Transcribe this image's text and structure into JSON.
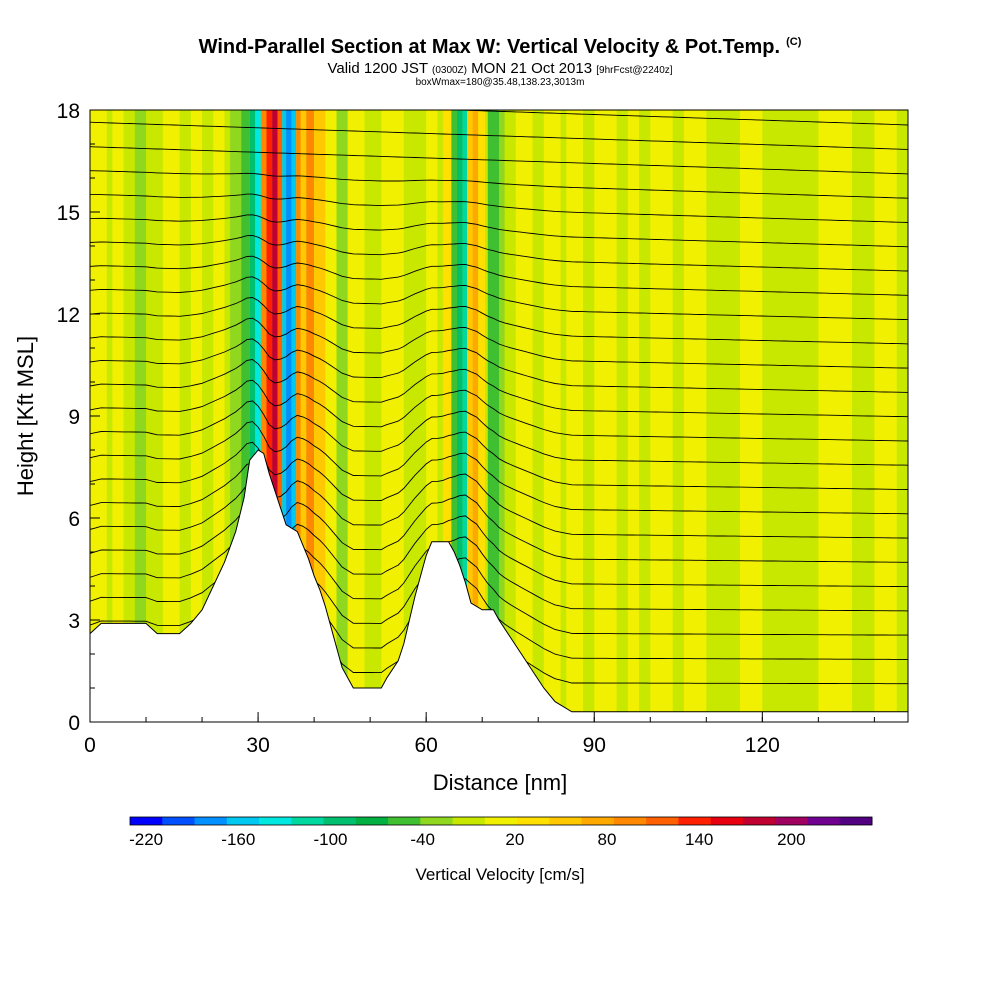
{
  "header": {
    "title": "Wind-Parallel Section at Max W: Vertical Velocity & Pot.Temp.",
    "title_tag": "(C)",
    "subtitle_main": "Valid 1200 JST",
    "subtitle_utc": "(0300Z)",
    "subtitle_date": "MON 21 Oct 2013",
    "subtitle_fcst": "[9hrFcst@2240z]",
    "subtitle_box": "boxWmax=180@35.48,138.23,3013m"
  },
  "chart_data": {
    "type": "heatmap",
    "title": "Wind-Parallel Section at Max W: Vertical Velocity & Pot.Temp.",
    "xlabel": "Distance [nm]",
    "ylabel": "Height [Kft MSL]",
    "xlim": [
      0,
      146
    ],
    "ylim": [
      0,
      18
    ],
    "x_ticks": [
      0,
      30,
      60,
      90,
      120
    ],
    "y_ticks": [
      0,
      3,
      6,
      9,
      12,
      15,
      18
    ],
    "colorbar": {
      "label": "Vertical Velocity [cm/s]",
      "tick_values": [
        -220,
        -160,
        -100,
        -40,
        20,
        80,
        140,
        200
      ],
      "colors": [
        "#0000ff",
        "#0050ff",
        "#0090ff",
        "#00c8f0",
        "#00e8e0",
        "#00d8a0",
        "#00c070",
        "#00b040",
        "#40c030",
        "#90d820",
        "#c8e800",
        "#f0f000",
        "#ffe000",
        "#ffc800",
        "#ffa800",
        "#ff8800",
        "#ff6000",
        "#ff2000",
        "#e80010",
        "#c00030",
        "#a00060",
        "#700090",
        "#500080"
      ]
    },
    "terrain_kft": [
      [
        0,
        2.6
      ],
      [
        2,
        2.9
      ],
      [
        6,
        2.9
      ],
      [
        10,
        2.9
      ],
      [
        12,
        2.6
      ],
      [
        16,
        2.6
      ],
      [
        18,
        2.9
      ],
      [
        20,
        3.3
      ],
      [
        22,
        4.0
      ],
      [
        24,
        4.7
      ],
      [
        26,
        5.6
      ],
      [
        27.5,
        6.6
      ],
      [
        28.5,
        7.7
      ],
      [
        30,
        8.0
      ],
      [
        31,
        7.9
      ],
      [
        32,
        7.3
      ],
      [
        33,
        6.8
      ],
      [
        34,
        6.3
      ],
      [
        35,
        5.8
      ],
      [
        36,
        5.7
      ],
      [
        37,
        5.6
      ],
      [
        38,
        5.2
      ],
      [
        39,
        4.8
      ],
      [
        40,
        4.3
      ],
      [
        41,
        3.9
      ],
      [
        42,
        3.4
      ],
      [
        43,
        2.8
      ],
      [
        44,
        2.2
      ],
      [
        45,
        1.6
      ],
      [
        46,
        1.3
      ],
      [
        47,
        1.0
      ],
      [
        49,
        1.0
      ],
      [
        52,
        1.0
      ],
      [
        53,
        1.3
      ],
      [
        55,
        1.8
      ],
      [
        56,
        2.3
      ],
      [
        57,
        3.0
      ],
      [
        58,
        3.7
      ],
      [
        59,
        4.3
      ],
      [
        60,
        4.9
      ],
      [
        61,
        5.3
      ],
      [
        64,
        5.3
      ],
      [
        65,
        5.0
      ],
      [
        66,
        4.6
      ],
      [
        67,
        4.1
      ],
      [
        68,
        3.5
      ],
      [
        70,
        3.3
      ],
      [
        72,
        3.3
      ],
      [
        73,
        3.0
      ],
      [
        75,
        2.5
      ],
      [
        77,
        2.0
      ],
      [
        79,
        1.5
      ],
      [
        81,
        1.0
      ],
      [
        83,
        0.6
      ],
      [
        86,
        0.3
      ],
      [
        146,
        0.3
      ]
    ],
    "series": [
      {
        "x_center": 32.5,
        "kind": "updraft",
        "peak_cms": 180
      },
      {
        "x_center": 35.5,
        "kind": "downdraft",
        "peak_cms": -160
      },
      {
        "x_center": 67.0,
        "kind": "downdraft",
        "peak_cms": -100
      },
      {
        "x_center": 69.0,
        "kind": "updraft",
        "peak_cms": 80
      }
    ],
    "theta_levels": 24
  }
}
